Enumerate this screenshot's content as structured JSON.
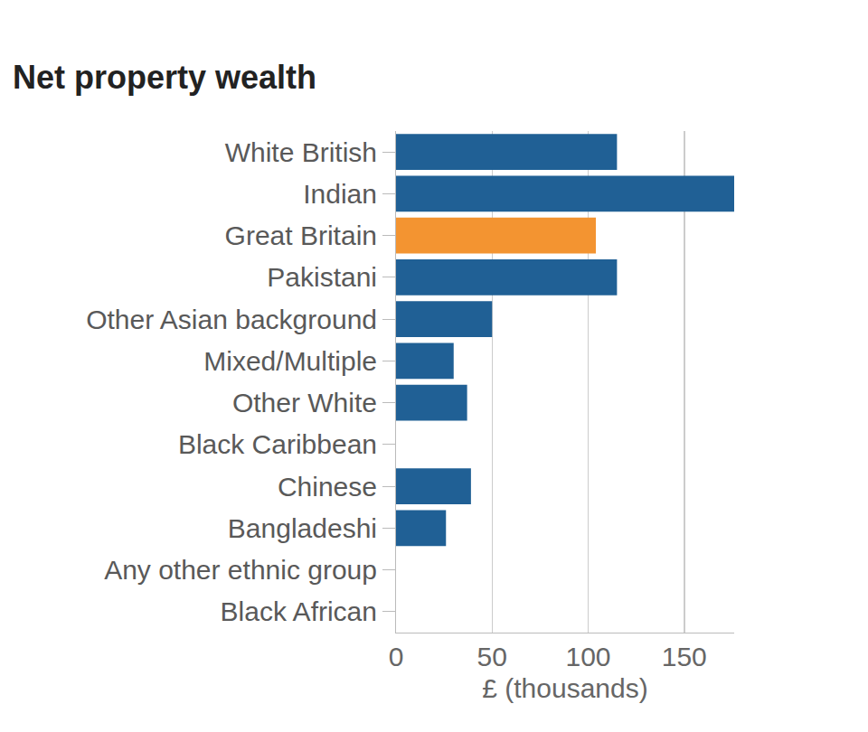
{
  "chart_data": {
    "type": "bar",
    "orientation": "horizontal",
    "title": "Net property wealth",
    "x_label": "£ (thousands)",
    "categories": [
      "White British",
      "Indian",
      "Great Britain",
      "Pakistani",
      "Other Asian background",
      "Mixed/Multiple",
      "Other White",
      "Black Caribbean",
      "Chinese",
      "Bangladeshi",
      "Any other ethnic group",
      "Black African"
    ],
    "values": [
      115,
      176,
      104,
      115,
      50,
      30,
      37,
      0,
      39,
      26,
      0,
      0
    ],
    "colors": [
      "#206095",
      "#206095",
      "#f39431",
      "#206095",
      "#206095",
      "#206095",
      "#206095",
      "#206095",
      "#206095",
      "#206095",
      "#206095",
      "#206095"
    ],
    "xlim": [
      0,
      176
    ],
    "xticks": [
      0,
      50,
      100,
      150
    ],
    "grid": true
  }
}
